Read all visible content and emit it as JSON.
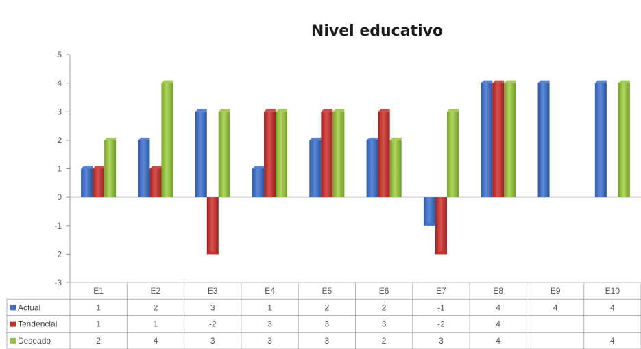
{
  "chart_data": {
    "type": "bar",
    "title": "Nivel educativo",
    "categories": [
      "E1",
      "E2",
      "E3",
      "E4",
      "E5",
      "E6",
      "E7",
      "E8",
      "E9",
      "E10"
    ],
    "series": [
      {
        "name": "Actual",
        "color": "#3f6fc4",
        "values": [
          1,
          2,
          3,
          1,
          2,
          2,
          -1,
          4,
          4,
          4
        ]
      },
      {
        "name": "Tendencial",
        "color": "#c0302e",
        "values": [
          1,
          1,
          -2,
          3,
          3,
          3,
          -2,
          4,
          null,
          null
        ]
      },
      {
        "name": "Deseado",
        "color": "#94bf3c",
        "values": [
          2,
          4,
          3,
          3,
          3,
          2,
          3,
          4,
          null,
          4
        ]
      }
    ],
    "ylim": [
      -3,
      5
    ],
    "yticks": [
      "5",
      "4",
      "3",
      "2",
      "1",
      "0",
      "-1",
      "-2",
      "-3"
    ],
    "grid": false,
    "legend": "data-table",
    "table": [
      {
        "label": "Actual",
        "cells": [
          "1",
          "2",
          "3",
          "1",
          "2",
          "2",
          "-1",
          "4",
          "4",
          "4"
        ]
      },
      {
        "label": "Tendencial",
        "cells": [
          "1",
          "1",
          "-2",
          "3",
          "3",
          "3",
          "-2",
          "4",
          "",
          ""
        ]
      },
      {
        "label": "Deseado",
        "cells": [
          "2",
          "4",
          "3",
          "3",
          "3",
          "2",
          "3",
          "4",
          "",
          "4"
        ]
      }
    ]
  }
}
